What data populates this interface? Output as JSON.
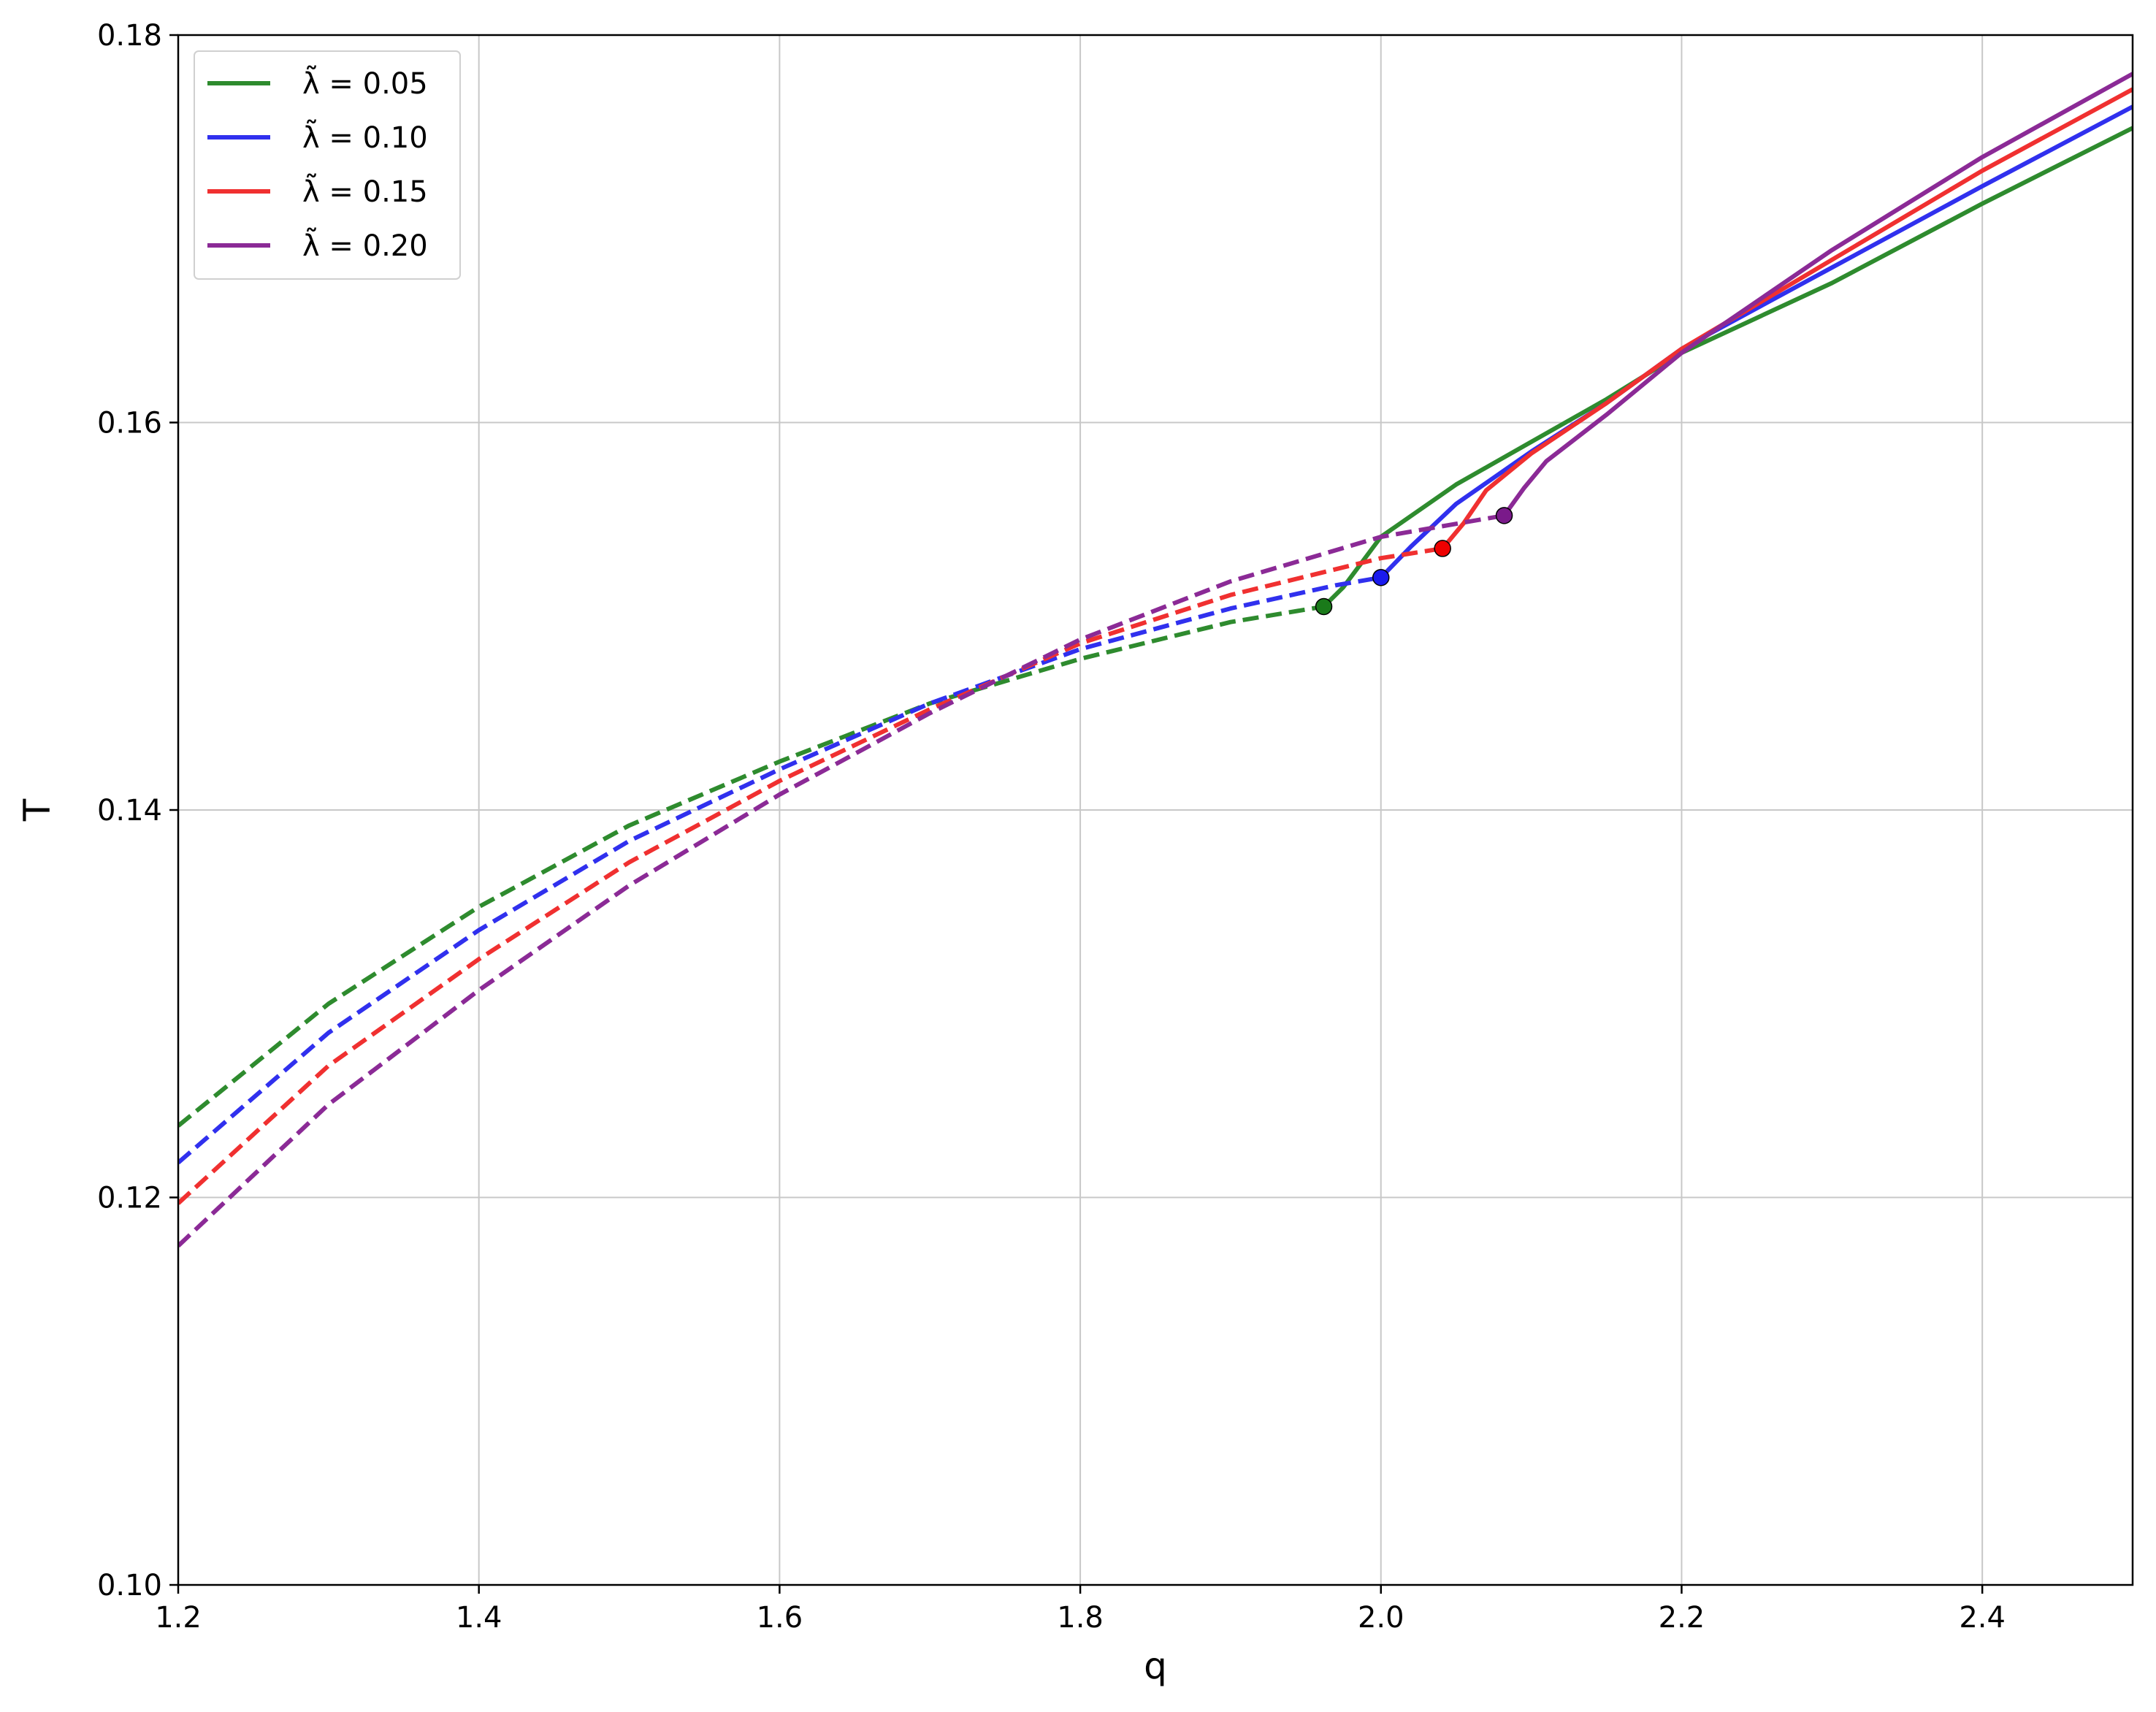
{
  "chart_data": {
    "type": "line",
    "title": "",
    "xlabel": "q",
    "ylabel": "T",
    "xlim": [
      1.2,
      2.5
    ],
    "ylim": [
      0.1,
      0.18
    ],
    "grid": true,
    "legend_position": "top-left",
    "xticks": [
      "1.2",
      "1.4",
      "1.6",
      "1.8",
      "2.0",
      "2.2",
      "2.4"
    ],
    "xtick_values": [
      1.2,
      1.4,
      1.6,
      1.8,
      2.0,
      2.2,
      2.4
    ],
    "yticks": [
      "0.10",
      "0.12",
      "0.14",
      "0.16",
      "0.18"
    ],
    "ytick_values": [
      0.1,
      0.12,
      0.14,
      0.16,
      0.18
    ],
    "series": [
      {
        "name": "λ̃ = 0.05",
        "lambda_value": "0.05",
        "color": "#2e8b2e",
        "marker_color": "#1a7a1a",
        "unstable_dashed": [
          [
            1.2,
            0.1237
          ],
          [
            1.3,
            0.13
          ],
          [
            1.4,
            0.135
          ],
          [
            1.5,
            0.1392
          ],
          [
            1.6,
            0.1425
          ],
          [
            1.7,
            0.1455
          ],
          [
            1.8,
            0.1478
          ],
          [
            1.9,
            0.1497
          ],
          [
            1.962,
            0.1505
          ]
        ],
        "transition_point": [
          1.962,
          0.1505
        ],
        "stable_solid": [
          [
            1.962,
            0.1505
          ],
          [
            1.975,
            0.1515
          ],
          [
            2.0,
            0.1541
          ],
          [
            2.05,
            0.1568
          ],
          [
            2.1,
            0.159
          ],
          [
            2.15,
            0.1612
          ],
          [
            2.2,
            0.1636
          ],
          [
            2.3,
            0.1672
          ],
          [
            2.4,
            0.1713
          ],
          [
            2.5,
            0.1752
          ]
        ]
      },
      {
        "name": "λ̃ = 0.10",
        "lambda_value": "0.10",
        "color": "#3030ee",
        "marker_color": "#1a1aee",
        "unstable_dashed": [
          [
            1.2,
            0.1218
          ],
          [
            1.3,
            0.1285
          ],
          [
            1.4,
            0.1338
          ],
          [
            1.5,
            0.1384
          ],
          [
            1.6,
            0.1421
          ],
          [
            1.7,
            0.1455
          ],
          [
            1.8,
            0.1483
          ],
          [
            1.9,
            0.1504
          ],
          [
            1.97,
            0.1516
          ],
          [
            2.0,
            0.152
          ]
        ],
        "transition_point": [
          2.0,
          0.152
        ],
        "stable_solid": [
          [
            2.0,
            0.152
          ],
          [
            2.02,
            0.1536
          ],
          [
            2.05,
            0.1558
          ],
          [
            2.1,
            0.1585
          ],
          [
            2.15,
            0.161
          ],
          [
            2.2,
            0.1638
          ],
          [
            2.3,
            0.168
          ],
          [
            2.4,
            0.1722
          ],
          [
            2.5,
            0.1763
          ]
        ]
      },
      {
        "name": "λ̃ = 0.15",
        "lambda_value": "0.15",
        "color": "#f03030",
        "marker_color": "#ee0000",
        "unstable_dashed": [
          [
            1.2,
            0.1197
          ],
          [
            1.3,
            0.1268
          ],
          [
            1.4,
            0.1323
          ],
          [
            1.5,
            0.1373
          ],
          [
            1.6,
            0.1415
          ],
          [
            1.7,
            0.1452
          ],
          [
            1.8,
            0.1486
          ],
          [
            1.9,
            0.1511
          ],
          [
            2.0,
            0.153
          ],
          [
            2.041,
            0.1535
          ]
        ],
        "transition_point": [
          2.041,
          0.1535
        ],
        "stable_solid": [
          [
            2.041,
            0.1535
          ],
          [
            2.055,
            0.1548
          ],
          [
            2.07,
            0.1565
          ],
          [
            2.1,
            0.1584
          ],
          [
            2.15,
            0.161
          ],
          [
            2.2,
            0.1638
          ],
          [
            2.3,
            0.1684
          ],
          [
            2.4,
            0.173
          ],
          [
            2.5,
            0.1772
          ]
        ]
      },
      {
        "name": "λ̃ = 0.20",
        "lambda_value": "0.20",
        "color": "#8b2a96",
        "marker_color": "#7a1a8a",
        "unstable_dashed": [
          [
            1.2,
            0.1175
          ],
          [
            1.3,
            0.1248
          ],
          [
            1.4,
            0.1307
          ],
          [
            1.5,
            0.1361
          ],
          [
            1.6,
            0.1408
          ],
          [
            1.7,
            0.145
          ],
          [
            1.8,
            0.1488
          ],
          [
            1.9,
            0.1518
          ],
          [
            2.0,
            0.1541
          ],
          [
            2.082,
            0.1552
          ]
        ],
        "transition_point": [
          2.082,
          0.1552
        ],
        "stable_solid": [
          [
            2.082,
            0.1552
          ],
          [
            2.095,
            0.1566
          ],
          [
            2.11,
            0.158
          ],
          [
            2.15,
            0.1604
          ],
          [
            2.2,
            0.1636
          ],
          [
            2.3,
            0.1689
          ],
          [
            2.4,
            0.1737
          ],
          [
            2.5,
            0.178
          ]
        ]
      }
    ]
  }
}
